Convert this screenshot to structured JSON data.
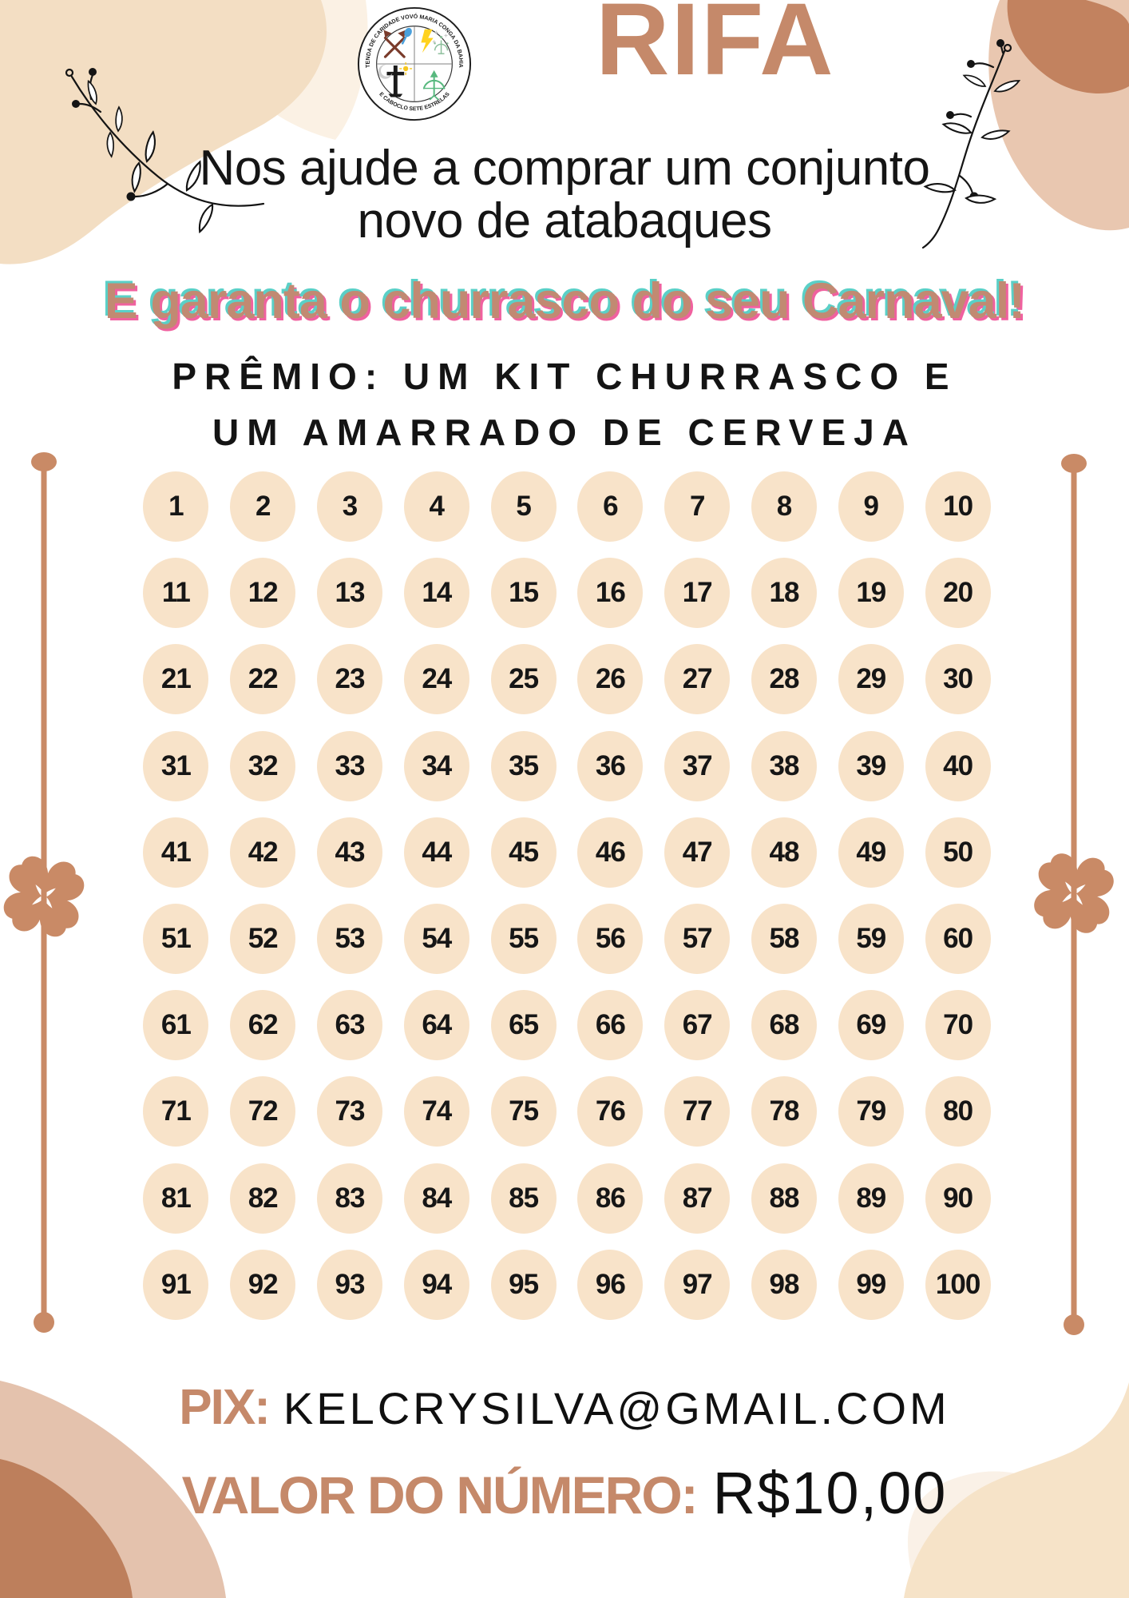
{
  "header": {
    "title": "RIFA",
    "subtitle_line1": "Nos ajude a comprar um conjunto",
    "subtitle_line2": "novo de atabaques",
    "highlight": "E garanta o churrasco do seu Carnaval!",
    "prize_line1": "PRÊMIO: UM KIT CHURRASCO E",
    "prize_line2": "UM AMARRADO DE CERVEJA"
  },
  "logo": {
    "arc_top": "TENDA DE CARIDADE VOVÓ MARIA CONGA DA BAHIA",
    "arc_bottom": "E CABOCLO SETE ESTRELAS"
  },
  "raffle": {
    "numbers": [
      "1",
      "2",
      "3",
      "4",
      "5",
      "6",
      "7",
      "8",
      "9",
      "10",
      "11",
      "12",
      "13",
      "14",
      "15",
      "16",
      "17",
      "18",
      "19",
      "20",
      "21",
      "22",
      "23",
      "24",
      "25",
      "26",
      "27",
      "28",
      "29",
      "30",
      "31",
      "32",
      "33",
      "34",
      "35",
      "36",
      "37",
      "38",
      "39",
      "40",
      "41",
      "42",
      "43",
      "44",
      "45",
      "46",
      "47",
      "48",
      "49",
      "50",
      "51",
      "52",
      "53",
      "54",
      "55",
      "56",
      "57",
      "58",
      "59",
      "60",
      "61",
      "62",
      "63",
      "64",
      "65",
      "66",
      "67",
      "68",
      "69",
      "70",
      "71",
      "72",
      "73",
      "74",
      "75",
      "76",
      "77",
      "78",
      "79",
      "80",
      "81",
      "82",
      "83",
      "84",
      "85",
      "86",
      "87",
      "88",
      "89",
      "90",
      "91",
      "92",
      "93",
      "94",
      "95",
      "96",
      "97",
      "98",
      "99",
      "100"
    ]
  },
  "footer": {
    "pix_label": "PIX:",
    "pix_value": "KELCRYSILVA@GMAIL.COM",
    "price_label": "VALOR DO NÚMERO:",
    "price_value": "R$10,00"
  },
  "colors": {
    "accent_terracotta": "#c5896a",
    "rail_terracotta": "#c98a66",
    "circle_fill": "#f8e3c9",
    "glitch_fill": "#c18a72",
    "glitch_pink": "#f0619f",
    "glitch_cyan": "#5ad0c7",
    "blob_peach": "#f3dec3",
    "blob_light": "#fbf1e4",
    "blob_rose": "#e4c2ad",
    "blob_dark": "#c2825f"
  }
}
